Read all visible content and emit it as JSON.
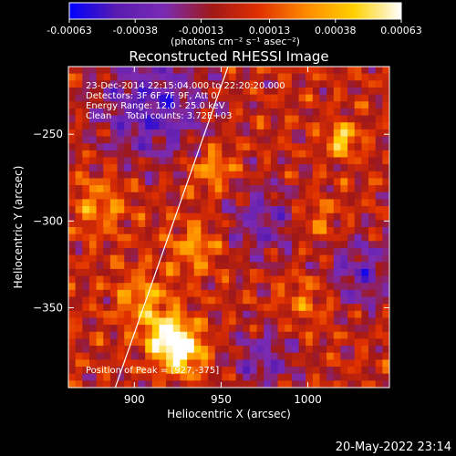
{
  "chart_data": {
    "type": "heatmap",
    "title": "Reconstructed RHESSI Image",
    "xlabel": "Heliocentric X (arcsec)",
    "ylabel": "Heliocentric Y (arcsec)",
    "xlim": [
      862,
      1047
    ],
    "ylim": [
      -396,
      -211
    ],
    "x_ticks": [
      900,
      950,
      1000
    ],
    "y_ticks": [
      -350,
      -300,
      -250
    ],
    "colorbar": {
      "range": [
        -0.00063,
        0.00063
      ],
      "tick_labels": [
        "-0.00063",
        "-0.00038",
        "-0.00013",
        "0.00013",
        "0.00038",
        "0.00063"
      ],
      "tick_values": [
        -0.00063,
        -0.00038,
        -0.00013,
        0.00013,
        0.00038,
        0.00063
      ],
      "unit_label": "(photons cm⁻² s⁻¹ asec⁻²)",
      "colormap": [
        "#0000ff",
        "#5a1bb0",
        "#7a2bb4",
        "#a01818",
        "#e03000",
        "#ff8a00",
        "#ffd000",
        "#ffffff"
      ]
    },
    "annotations": [
      "23-Dec-2014 22:15:04.000 to 22:20:20.000",
      "Detectors: 3F 6F 7F 9F, Att 0",
      "Energy Range: 12.0 - 25.0 keV",
      "Clean     Total counts: 3.72E+03"
    ],
    "peak_label": "Position of Peak = [927,-375]",
    "peak": [
      927,
      -375
    ],
    "limb_line": [
      [
        889,
        -396
      ],
      [
        954,
        -211
      ]
    ],
    "sources": [
      {
        "x": 927,
        "y": -375,
        "amp": 0.00063,
        "sigma": 9
      },
      {
        "x": 918,
        "y": -365,
        "amp": 0.00045,
        "sigma": 9
      },
      {
        "x": 905,
        "y": -345,
        "amp": 0.0003,
        "sigma": 11
      },
      {
        "x": 945,
        "y": -270,
        "amp": 0.00032,
        "sigma": 9
      },
      {
        "x": 935,
        "y": -315,
        "amp": 0.0003,
        "sigma": 10
      },
      {
        "x": 1020,
        "y": -253,
        "amp": 0.0005,
        "sigma": 6
      },
      {
        "x": 1005,
        "y": -300,
        "amp": 0.00022,
        "sigma": 10
      },
      {
        "x": 1000,
        "y": -345,
        "amp": 0.0002,
        "sigma": 12
      },
      {
        "x": 880,
        "y": -290,
        "amp": 0.00025,
        "sigma": 12
      }
    ],
    "negative_regions": [
      {
        "x": 910,
        "y": -235,
        "amp": -0.0004,
        "sigma": 22
      },
      {
        "x": 975,
        "y": -300,
        "amp": -0.0003,
        "sigma": 16
      },
      {
        "x": 1030,
        "y": -330,
        "amp": -0.00032,
        "sigma": 16
      },
      {
        "x": 975,
        "y": -380,
        "amp": -0.00028,
        "sigma": 14
      }
    ]
  },
  "footer": {
    "timestamp": "20-May-2022 23:14"
  }
}
